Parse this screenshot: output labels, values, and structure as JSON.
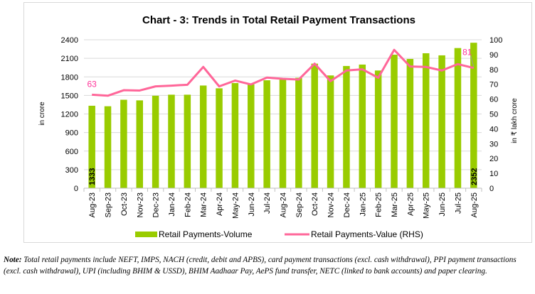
{
  "chart_data": {
    "type": "bar+line",
    "title": "Chart - 3: Trends in Total Retail Payment Transactions",
    "categories": [
      "Aug-23",
      "Sep-23",
      "Oct-23",
      "Nov-23",
      "Dec-23",
      "Jan-24",
      "Feb-24",
      "Mar-24",
      "Apr-24",
      "May-24",
      "Jun-24",
      "Jul-24",
      "Aug-24",
      "Sep-24",
      "Oct-24",
      "Nov-24",
      "Dec-24",
      "Jan-25",
      "Feb-25",
      "Mar-25",
      "Apr-25",
      "May-25",
      "Jun-25",
      "Jul-25",
      "Aug-25"
    ],
    "series": [
      {
        "name": "Retail Payments-Volume",
        "type": "bar",
        "axis": "left",
        "color": "#99cc00",
        "values": [
          1333,
          1325,
          1430,
          1420,
          1495,
          1512,
          1512,
          1660,
          1615,
          1700,
          1680,
          1745,
          1777,
          1785,
          2014,
          1823,
          1976,
          1999,
          1903,
          2159,
          2090,
          2182,
          2148,
          2266,
          2352
        ]
      },
      {
        "name": "Retail Payments-Value (RHS)",
        "type": "line",
        "axis": "right",
        "color": "#ff6699",
        "values": [
          63,
          62.3,
          66,
          65.8,
          68.6,
          69.1,
          69.7,
          81.7,
          68.6,
          72.5,
          69.9,
          74.5,
          73.7,
          73.2,
          83.9,
          72.1,
          79.3,
          80.1,
          74.4,
          93.2,
          82,
          81.7,
          79.3,
          83.6,
          81
        ]
      }
    ],
    "data_labels": {
      "bar_first": "1333",
      "bar_last": "2352",
      "line_first": "63",
      "line_last": "81"
    },
    "ylabel_left": "in crore",
    "ylabel_right": "in ₹ lakh crore",
    "ylim_left": [
      0,
      2400
    ],
    "yticks_left": [
      "0",
      "300",
      "600",
      "900",
      "1200",
      "1500",
      "1800",
      "2100",
      "2400"
    ],
    "ylim_right": [
      0,
      100
    ],
    "yticks_right": [
      "0",
      "10",
      "20",
      "30",
      "40",
      "50",
      "60",
      "70",
      "80",
      "90",
      "100"
    ],
    "grid": true,
    "legend_position": "bottom"
  },
  "note": {
    "label": "Note:",
    "text": " Total retail payments include NEFT, IMPS, NACH (credit, debit and APBS), card payment transactions (excl. cash withdrawal), PPI payment transactions (excl. cash withdrawal), UPI (including BHIM & USSD), BHIM Aadhaar Pay, AePS fund transfer, NETC (linked to bank accounts) and paper clearing."
  }
}
